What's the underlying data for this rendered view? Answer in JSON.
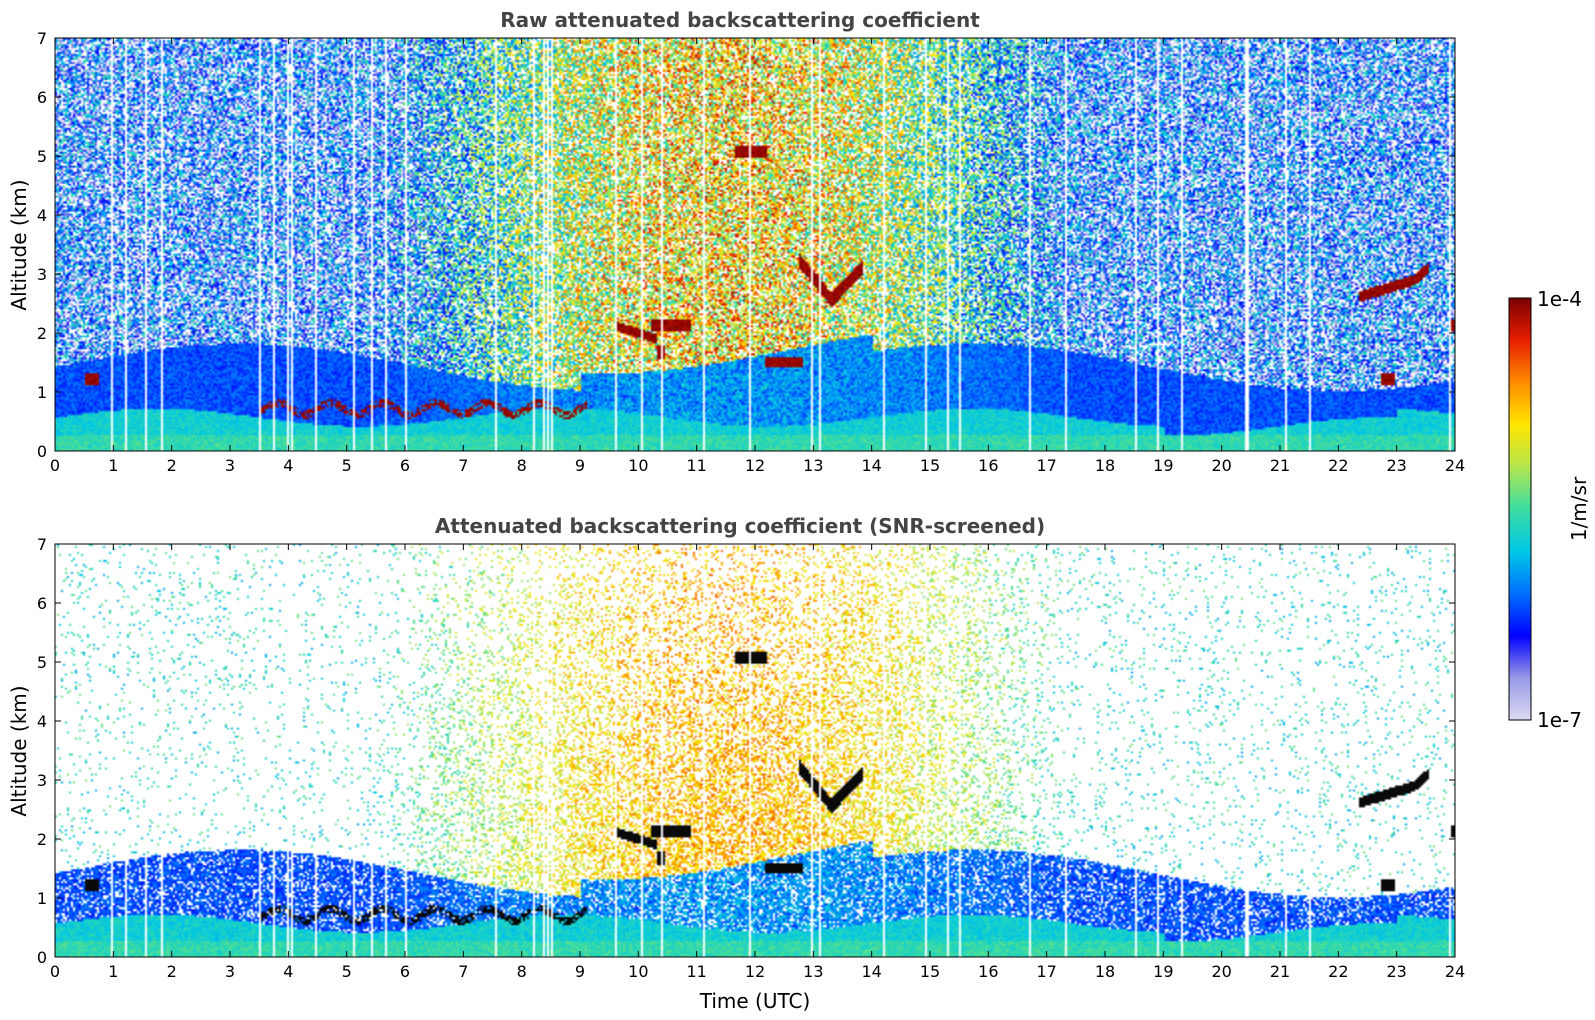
{
  "chart_data": [
    {
      "type": "heatmap",
      "title": "Raw attenuated backscattering coefficient",
      "xlabel": "",
      "ylabel": "Altitude (km)",
      "xlim": [
        0,
        24
      ],
      "ylim": [
        0,
        7
      ],
      "xticks": [
        "0",
        "1",
        "2",
        "3",
        "4",
        "5",
        "6",
        "7",
        "8",
        "9",
        "10",
        "11",
        "12",
        "13",
        "14",
        "15",
        "16",
        "17",
        "18",
        "19",
        "20",
        "21",
        "22",
        "23",
        "24"
      ],
      "yticks": [
        "0",
        "1",
        "2",
        "3",
        "4",
        "5",
        "6",
        "7"
      ],
      "features": [
        {
          "kind": "boundary_layer",
          "time_range": [
            0,
            24
          ],
          "top_km": 0.6
        },
        {
          "kind": "cloud",
          "time_range": [
            12.7,
            13.9
          ],
          "altitude_km": [
            2.5,
            3.2
          ]
        },
        {
          "kind": "cloud",
          "time_range": [
            22.4,
            23.6
          ],
          "altitude_km": [
            2.5,
            3.0
          ]
        },
        {
          "kind": "cloud",
          "time_range": [
            11.6,
            12.3
          ],
          "altitude_km": [
            4.9,
            5.2
          ]
        },
        {
          "kind": "cloud",
          "time_range": [
            9.5,
            11.2
          ],
          "altitude_km": [
            1.6,
            2.3
          ]
        },
        {
          "kind": "cloud",
          "time_range": [
            12.1,
            12.8
          ],
          "altitude_km": [
            1.4,
            1.6
          ]
        }
      ]
    },
    {
      "type": "heatmap",
      "title": "Attenuated backscattering coefficient (SNR-screened)",
      "xlabel": "Time (UTC)",
      "ylabel": "Altitude (km)",
      "xlim": [
        0,
        24
      ],
      "ylim": [
        0,
        7
      ],
      "xticks": [
        "0",
        "1",
        "2",
        "3",
        "4",
        "5",
        "6",
        "7",
        "8",
        "9",
        "10",
        "11",
        "12",
        "13",
        "14",
        "15",
        "16",
        "17",
        "18",
        "19",
        "20",
        "21",
        "22",
        "23",
        "24"
      ],
      "yticks": [
        "0",
        "1",
        "2",
        "3",
        "4",
        "5",
        "6",
        "7"
      ],
      "features": [
        {
          "kind": "boundary_layer",
          "time_range": [
            0,
            24
          ],
          "top_km": 0.6
        },
        {
          "kind": "cloud",
          "time_range": [
            12.7,
            13.9
          ],
          "altitude_km": [
            2.5,
            3.2
          ]
        },
        {
          "kind": "cloud",
          "time_range": [
            22.4,
            23.6
          ],
          "altitude_km": [
            2.5,
            3.0
          ]
        }
      ]
    }
  ],
  "colorbar": {
    "max_label": "1e-4",
    "min_label": "1e-7",
    "label": "1/m/sr",
    "scale": "log",
    "range": [
      1e-07,
      0.0001
    ],
    "colors": [
      "#dcdcf5",
      "#9898e6",
      "#0000ff",
      "#0070ff",
      "#00c8e6",
      "#3cdca0",
      "#b4e650",
      "#ffe600",
      "#ff8c00",
      "#e61e00",
      "#7a0000"
    ]
  }
}
